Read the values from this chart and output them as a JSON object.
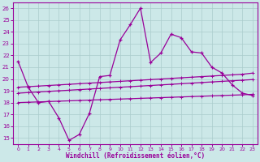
{
  "x": [
    0,
    1,
    2,
    3,
    4,
    5,
    6,
    7,
    8,
    9,
    10,
    11,
    12,
    13,
    14,
    15,
    16,
    17,
    18,
    19,
    20,
    21,
    22,
    23
  ],
  "line_main": [
    21.5,
    19.3,
    18.0,
    18.1,
    16.7,
    14.8,
    15.3,
    17.1,
    20.2,
    20.3,
    23.3,
    24.6,
    26.0,
    21.4,
    22.2,
    23.8,
    23.5,
    22.3,
    22.2,
    21.0,
    20.5,
    19.5,
    18.8,
    18.6
  ],
  "line2": [
    19.3,
    19.35,
    19.4,
    19.45,
    19.5,
    19.55,
    19.6,
    19.65,
    19.7,
    19.75,
    19.8,
    19.85,
    19.9,
    19.95,
    20.0,
    20.05,
    20.1,
    20.15,
    20.2,
    20.25,
    20.3,
    20.35,
    20.4,
    20.5
  ],
  "line3": [
    18.8,
    18.85,
    18.9,
    18.95,
    19.0,
    19.05,
    19.1,
    19.15,
    19.2,
    19.25,
    19.3,
    19.35,
    19.4,
    19.45,
    19.5,
    19.55,
    19.6,
    19.65,
    19.7,
    19.75,
    19.8,
    19.85,
    19.9,
    19.95
  ],
  "line4": [
    18.0,
    18.03,
    18.06,
    18.09,
    18.12,
    18.15,
    18.18,
    18.21,
    18.24,
    18.27,
    18.3,
    18.33,
    18.36,
    18.39,
    18.42,
    18.45,
    18.48,
    18.51,
    18.54,
    18.57,
    18.6,
    18.63,
    18.66,
    18.7
  ],
  "background_color": "#cce8e8",
  "grid_color": "#aacccc",
  "line_color": "#990099",
  "xlabel": "Windchill (Refroidissement éolien,°C)",
  "ylim": [
    14.5,
    26.5
  ],
  "xlim": [
    -0.5,
    23.5
  ],
  "yticks": [
    15,
    16,
    17,
    18,
    19,
    20,
    21,
    22,
    23,
    24,
    25,
    26
  ],
  "xticks": [
    0,
    1,
    2,
    3,
    4,
    5,
    6,
    7,
    8,
    9,
    10,
    11,
    12,
    13,
    14,
    15,
    16,
    17,
    18,
    19,
    20,
    21,
    22,
    23
  ]
}
